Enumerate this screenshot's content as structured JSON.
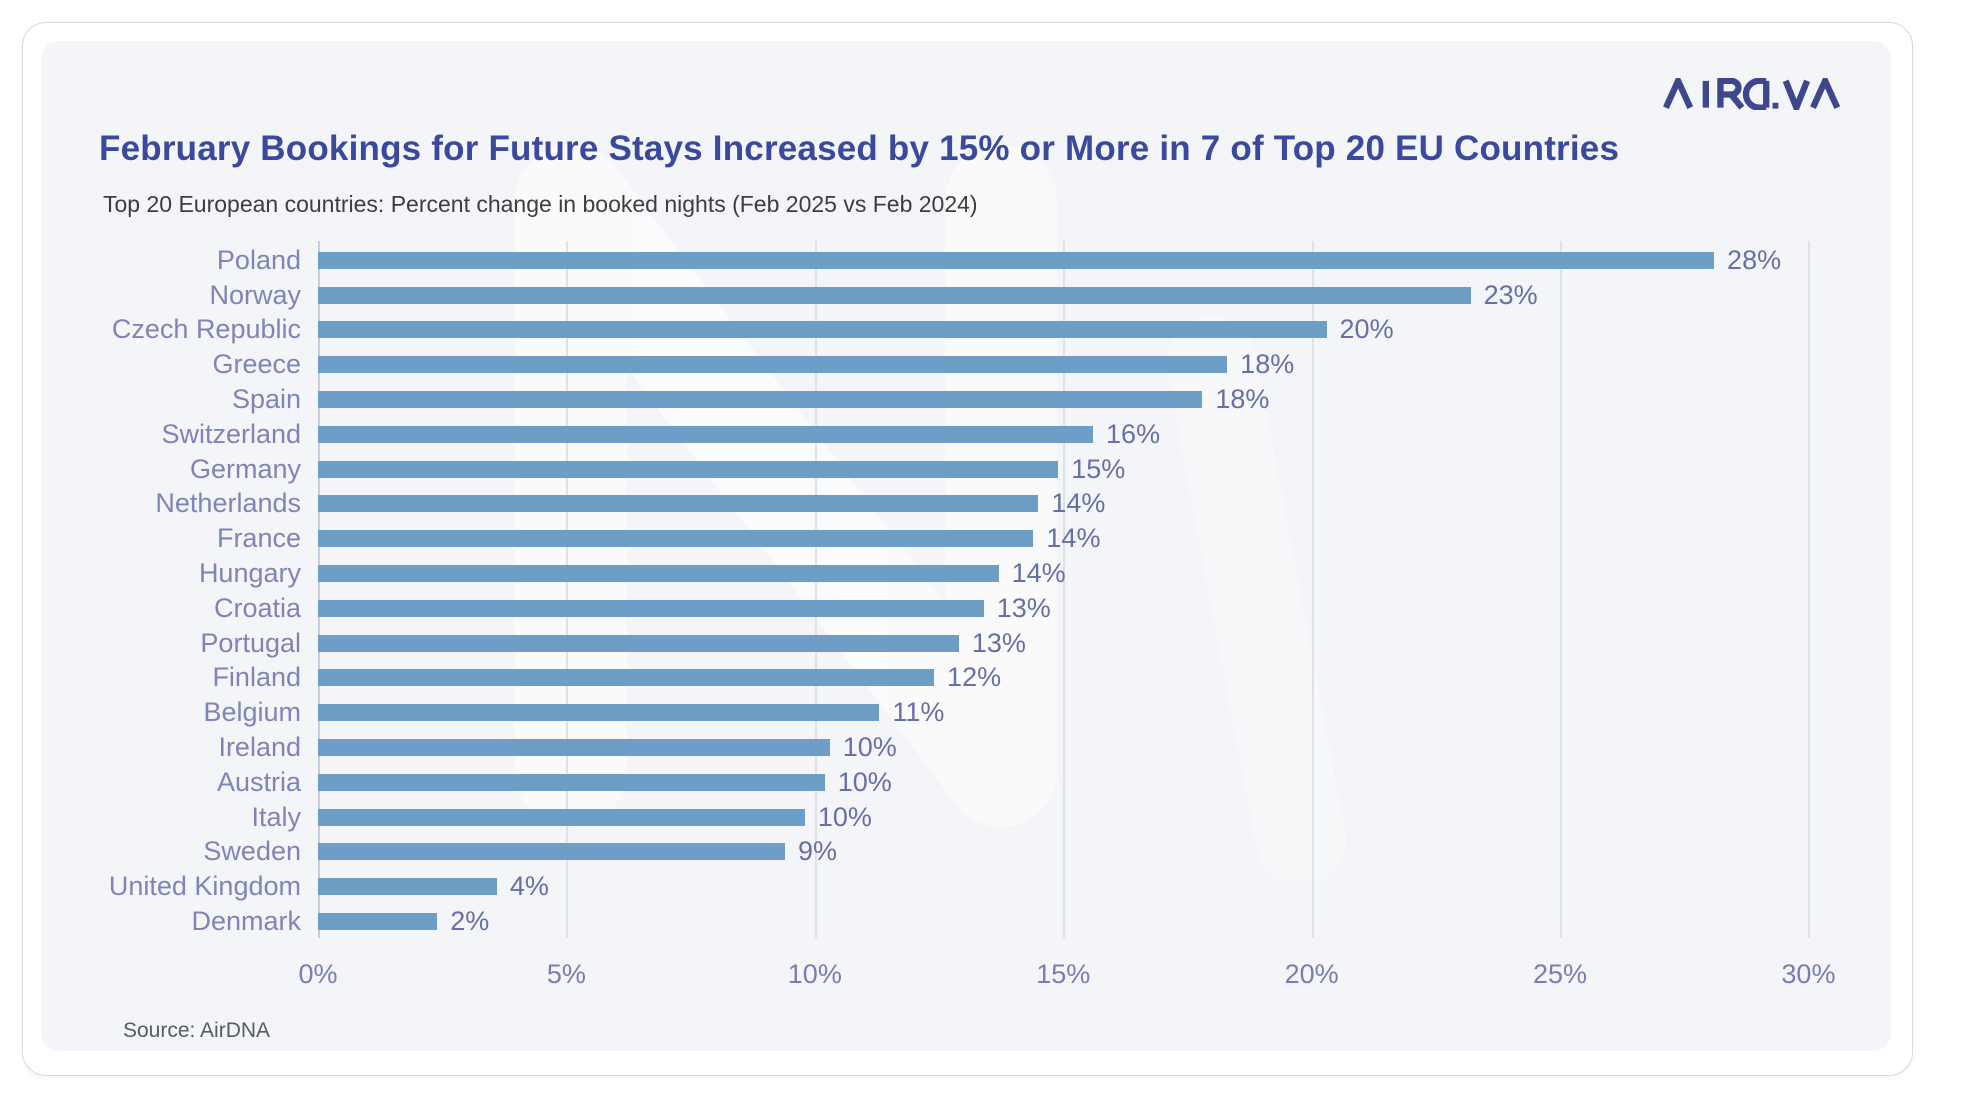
{
  "logo": {
    "name": "AIRDNA"
  },
  "source_note": "Source: AirDNA",
  "chart_data": {
    "type": "bar",
    "orientation": "horizontal",
    "title": "February Bookings for Future Stays Increased by 15% or More in 7 of Top 20 EU Countries",
    "subtitle": "Top 20 European countries: Percent change in booked nights (Feb 2025 vs Feb 2024)",
    "categories": [
      "Poland",
      "Norway",
      "Czech Republic",
      "Greece",
      "Spain",
      "Switzerland",
      "Germany",
      "Netherlands",
      "France",
      "Hungary",
      "Croatia",
      "Portugal",
      "Finland",
      "Belgium",
      "Ireland",
      "Austria",
      "Italy",
      "Sweden",
      "United Kingdom",
      "Denmark"
    ],
    "values": [
      28.1,
      23.2,
      20.3,
      18.3,
      17.8,
      15.6,
      14.9,
      14.5,
      14.4,
      13.7,
      13.4,
      12.9,
      12.4,
      11.3,
      10.3,
      10.2,
      9.8,
      9.4,
      3.6,
      2.4
    ],
    "value_labels": [
      "28%",
      "23%",
      "20%",
      "18%",
      "18%",
      "16%",
      "15%",
      "14%",
      "14%",
      "14%",
      "13%",
      "13%",
      "12%",
      "11%",
      "10%",
      "10%",
      "10%",
      "9%",
      "4%",
      "2%"
    ],
    "x_ticks": [
      "0%",
      "5%",
      "10%",
      "15%",
      "20%",
      "25%",
      "30%"
    ],
    "x_tick_values": [
      0,
      5,
      10,
      15,
      20,
      25,
      30
    ],
    "xlim": [
      0,
      31.4
    ],
    "xlabel": "",
    "ylabel": "",
    "grid": "vertical-only",
    "legend": "none",
    "colors": {
      "bar": "#6E9EC5",
      "title": "#3A499E",
      "subtitle": "#3C3D42",
      "category_label": "#7D85B8",
      "value_label": "#666FA8",
      "tick_label": "#767EB3",
      "gridline": "#DEE0EA",
      "zero_line": "#C9CCD9",
      "card_background": "#F4F5F8",
      "logo": "#3F478C",
      "watermark": "#FFFFFF"
    }
  }
}
